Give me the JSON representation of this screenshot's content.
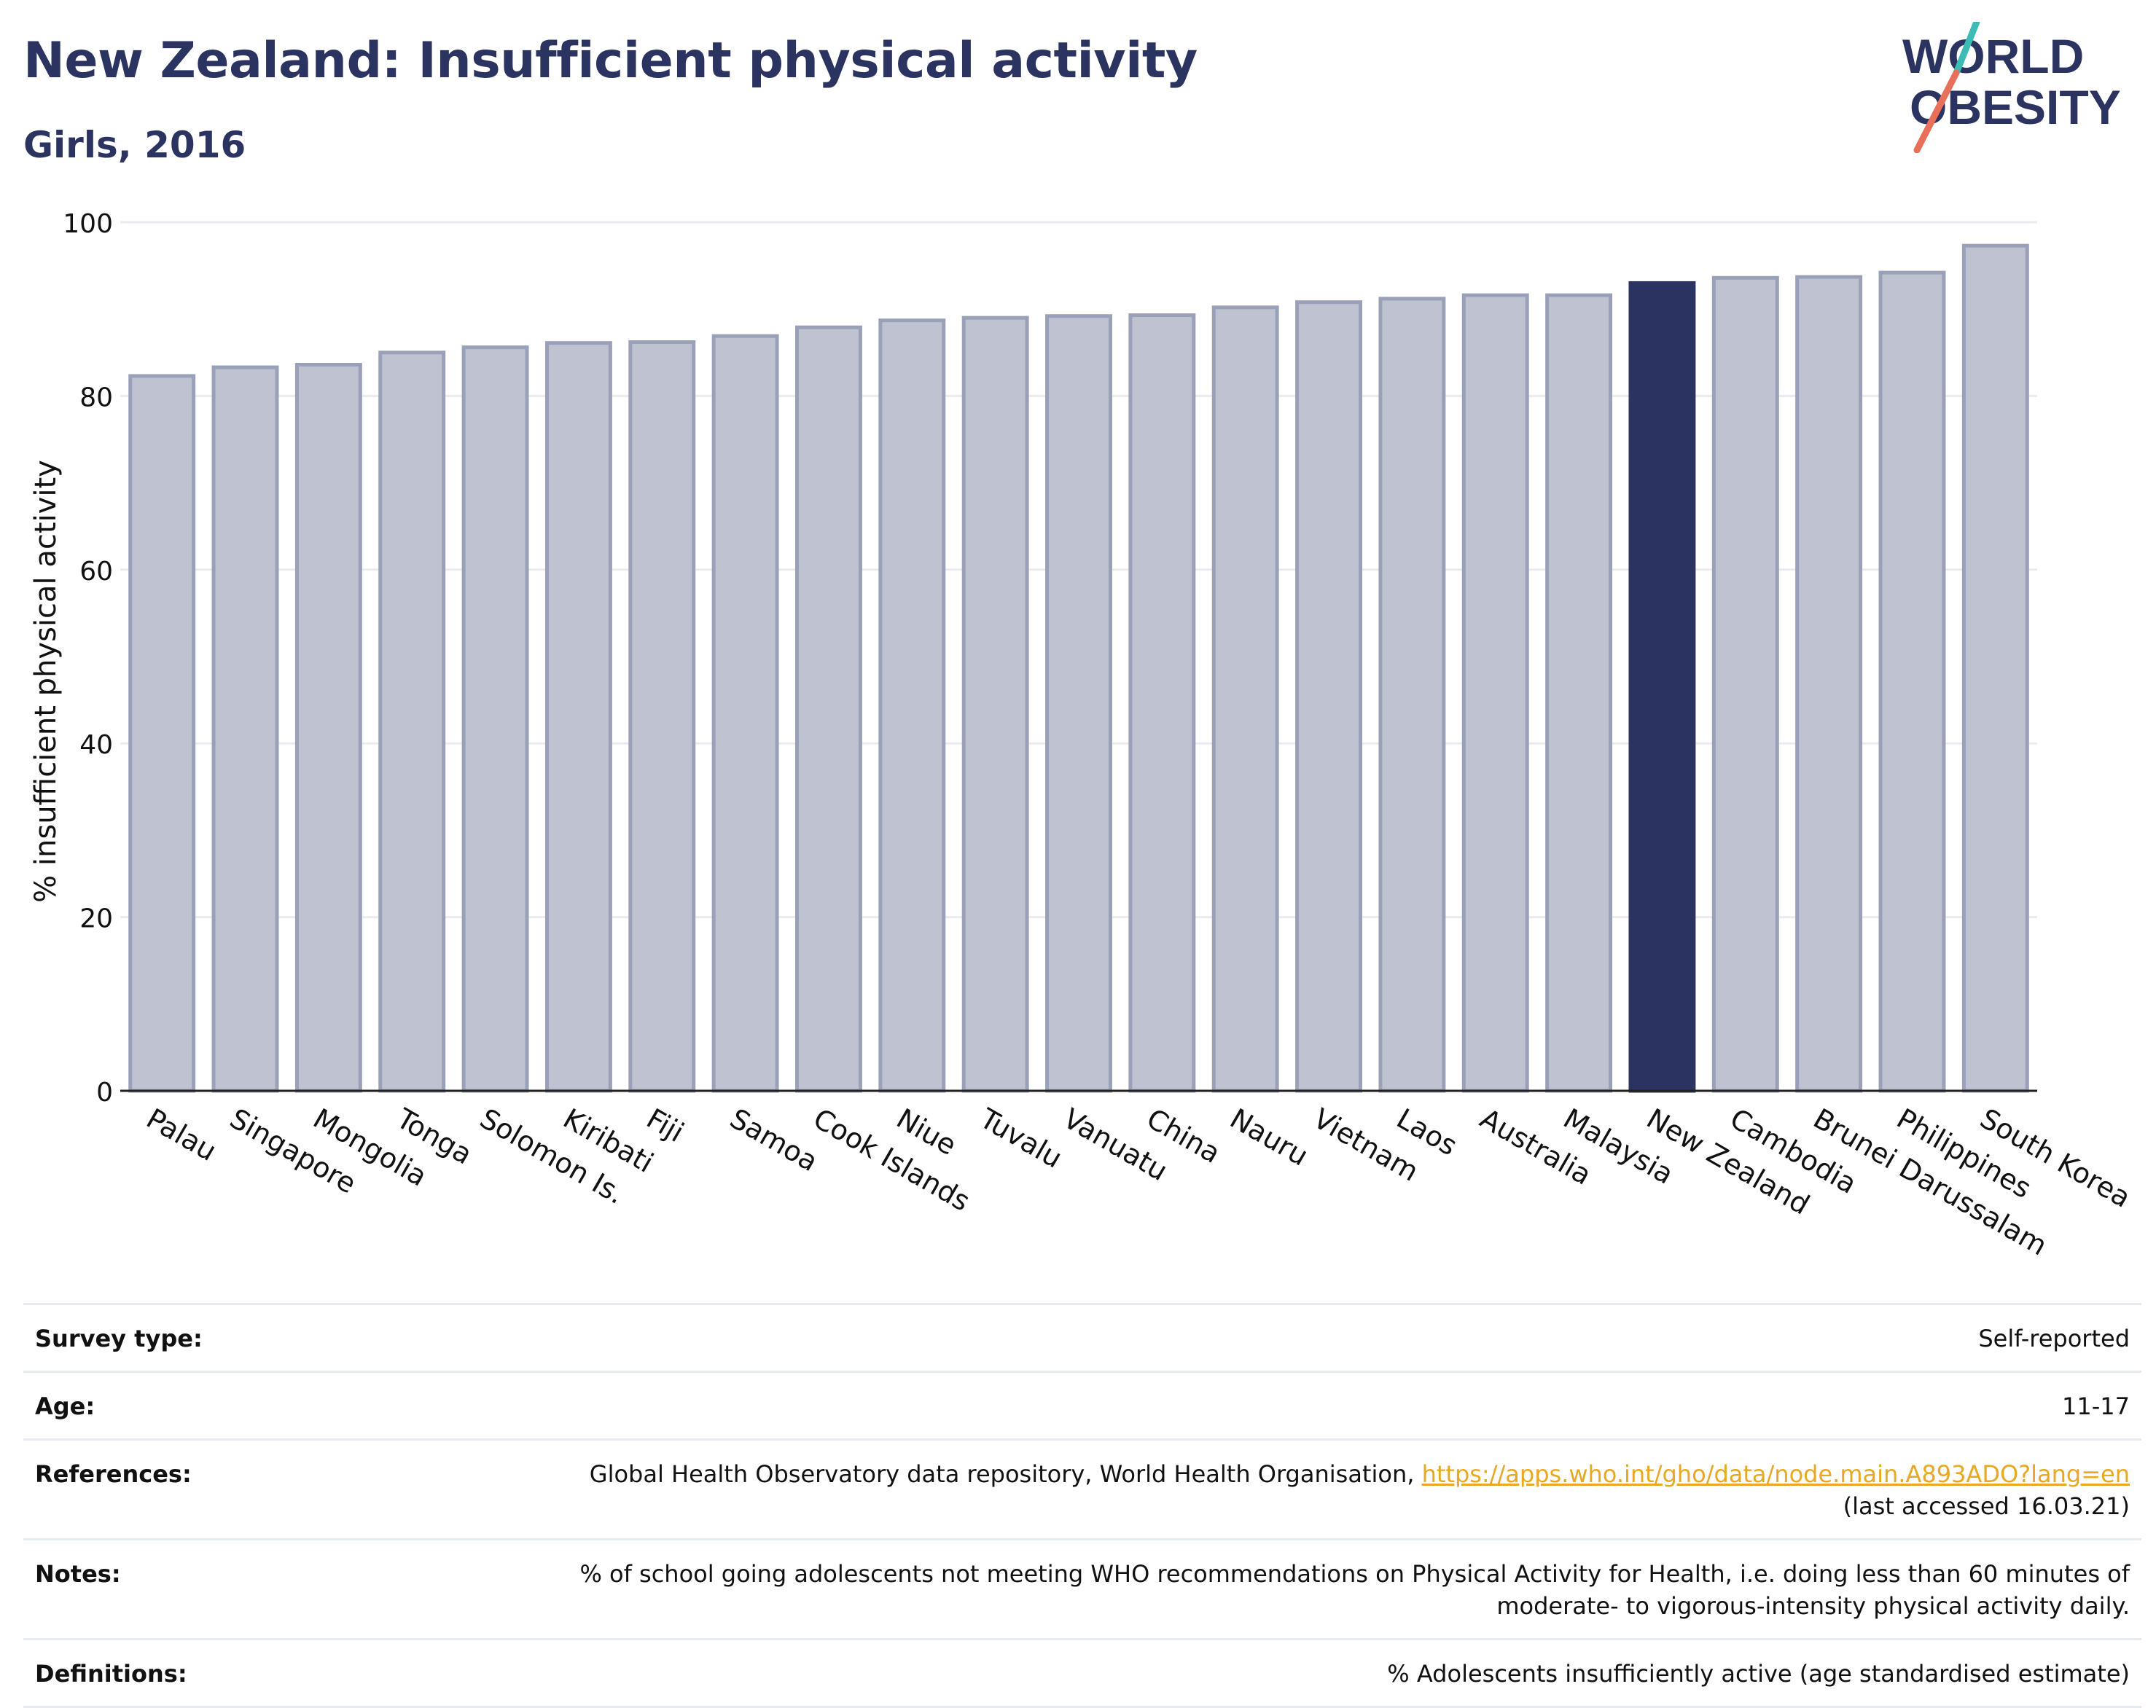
{
  "header": {
    "title": "New Zealand: Insufficient physical activity",
    "subtitle": "Girls, 2016"
  },
  "logo": {
    "line1": "WORLD",
    "line2": "OBESITY",
    "slash_colors": [
      "#3cbcb4",
      "#e8705a"
    ]
  },
  "chart_data": {
    "type": "bar",
    "categories": [
      "Palau",
      "Singapore",
      "Mongolia",
      "Tonga",
      "Solomon Is.",
      "Kiribati",
      "Fiji",
      "Samoa",
      "Cook Islands",
      "Niue",
      "Tuvalu",
      "Vanuatu",
      "China",
      "Nauru",
      "Vietnam",
      "Laos",
      "Australia",
      "Malaysia",
      "New Zealand",
      "Cambodia",
      "Brunei Darussalam",
      "Philippines",
      "South Korea"
    ],
    "values": [
      82.3,
      83.3,
      83.6,
      85.0,
      85.6,
      86.1,
      86.2,
      86.9,
      87.9,
      88.7,
      89.0,
      89.2,
      89.3,
      90.2,
      90.8,
      91.2,
      91.6,
      91.6,
      93.0,
      93.6,
      93.7,
      94.2,
      97.3
    ],
    "highlight": "New Zealand",
    "xlabel": "",
    "ylabel": "% insufficient physical activity",
    "ylim": [
      0,
      100
    ],
    "yticks": [
      0,
      20,
      40,
      60,
      80,
      100
    ],
    "grid": true,
    "colors": {
      "bar": "#bfc2d0",
      "bar_border": "#9aa0b8",
      "highlight": "#2b3461",
      "grid": "#e9ebf1"
    }
  },
  "info": [
    {
      "label": "Survey type:",
      "value": "Self-reported"
    },
    {
      "label": "Age:",
      "value": "11-17"
    },
    {
      "label": "References:",
      "value": "Global Health Observatory data repository, World Health Organisation, ",
      "link": "https://apps.who.int/gho/data/node.main.A893ADO?lang=en",
      "suffix": "(last accessed 16.03.21)"
    },
    {
      "label": "Notes:",
      "value": "% of school going adolescents not meeting WHO recommendations on Physical Activity for Health, i.e. doing less than 60 minutes of moderate- to vigorous-intensity physical activity daily."
    },
    {
      "label": "Definitions:",
      "value": "% Adolescents insufficiently active (age standardised estimate)"
    }
  ]
}
